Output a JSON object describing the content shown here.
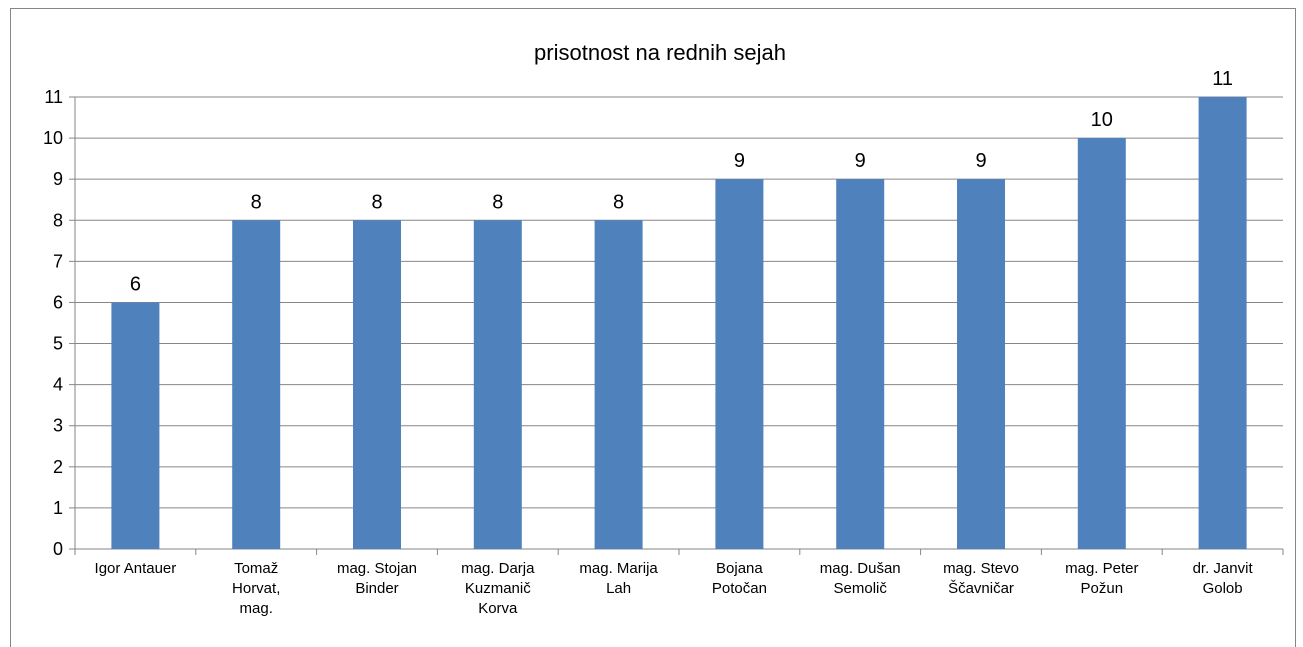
{
  "chart_data": {
    "type": "bar",
    "title": "prisotnost na rednih sejah",
    "categories": [
      "Igor Antauer",
      "Tomaž\nHorvat,\nmag.",
      "mag. Stojan\nBinder",
      "mag. Darja\nKuzmanič\nKorva",
      "mag. Marija\nLah",
      "Bojana\nPotočan",
      "mag. Dušan\nSemolič",
      "mag. Stevo\nŠčavničar",
      "mag. Peter\nPožun",
      "dr. Janvit\nGolob"
    ],
    "values": [
      6,
      8,
      8,
      8,
      8,
      9,
      9,
      9,
      10,
      11
    ],
    "color": "#4f81bd",
    "ylim": [
      0,
      11
    ],
    "yticks": [
      0,
      1,
      2,
      3,
      4,
      5,
      6,
      7,
      8,
      9,
      10,
      11
    ],
    "grid": true
  }
}
